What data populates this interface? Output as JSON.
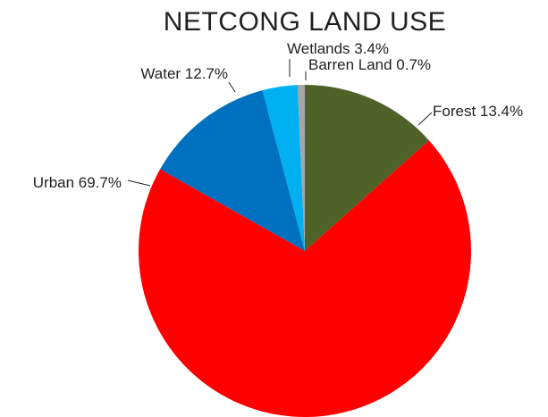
{
  "chart_data": {
    "type": "pie",
    "title": "NETCONG LAND USE",
    "slices": [
      {
        "name": "Forest",
        "value": 13.4,
        "label": "Forest 13.4%",
        "color": "#4f6228"
      },
      {
        "name": "Urban",
        "value": 69.7,
        "label": "Urban 69.7%",
        "color": "#ff0000"
      },
      {
        "name": "Water",
        "value": 12.7,
        "label": "Water 12.7%",
        "color": "#0070c0"
      },
      {
        "name": "Wetlands",
        "value": 3.4,
        "label": "Wetlands 3.4%",
        "color": "#00b0f0"
      },
      {
        "name": "Barren Land",
        "value": 0.7,
        "label": "Barren Land 0.7%",
        "color": "#a6a6a6"
      }
    ],
    "start_angle": "12 o'clock",
    "direction": "clockwise",
    "legend": "none",
    "data_labels": "outside with leader lines"
  }
}
